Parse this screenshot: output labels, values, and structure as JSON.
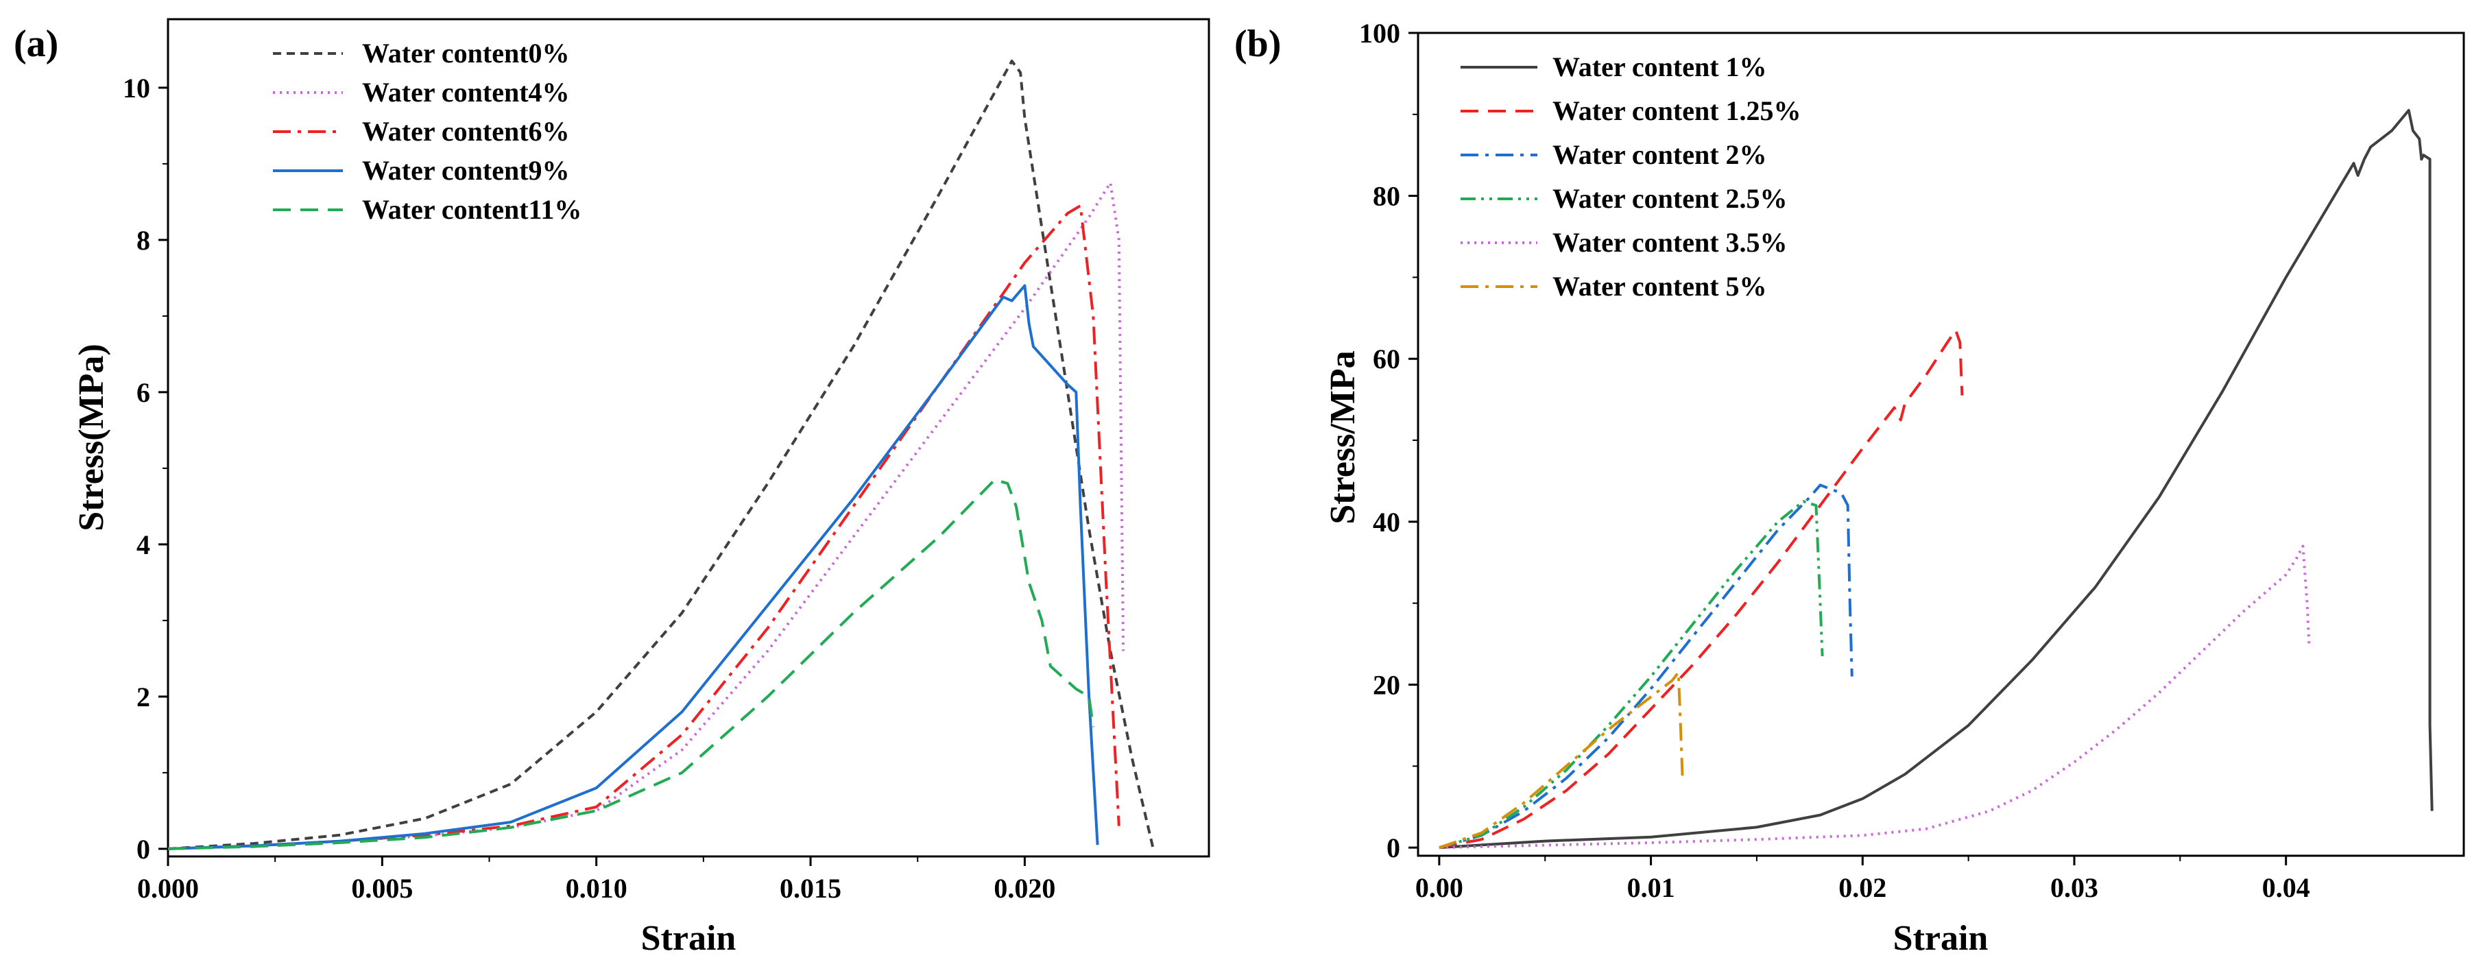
{
  "chart_data": [
    {
      "panel": "(a)",
      "type": "line",
      "xlabel": "Strain",
      "ylabel": "Stress(MPa)",
      "xlim": [
        0.0,
        0.0243
      ],
      "ylim": [
        -0.1,
        10.9
      ],
      "xticks": [
        "0.000",
        "0.005",
        "0.010",
        "0.015",
        "0.020"
      ],
      "xtick_values": [
        0.0,
        0.005,
        0.01,
        0.015,
        0.02
      ],
      "yticks": [
        "0",
        "2",
        "4",
        "6",
        "8",
        "10"
      ],
      "ytick_values": [
        0,
        2,
        4,
        6,
        8,
        10
      ],
      "legend_position": "top-left",
      "series": [
        {
          "name": "Water content0%",
          "color": "#404040",
          "dash": "dash-short",
          "x": [
            0,
            0.002,
            0.004,
            0.006,
            0.008,
            0.01,
            0.012,
            0.014,
            0.016,
            0.018,
            0.0197,
            0.0199,
            0.02,
            0.0205,
            0.021,
            0.0215,
            0.022,
            0.0225,
            0.023
          ],
          "y": [
            0,
            0.07,
            0.18,
            0.4,
            0.85,
            1.8,
            3.1,
            4.8,
            6.6,
            8.6,
            10.35,
            10.2,
            9.6,
            7.8,
            6.0,
            4.2,
            2.6,
            1.2,
            0
          ]
        },
        {
          "name": "Water content4%",
          "color": "#cc66dd",
          "dash": "dot",
          "x": [
            0,
            0.002,
            0.004,
            0.006,
            0.008,
            0.01,
            0.012,
            0.014,
            0.016,
            0.018,
            0.02,
            0.0215,
            0.022,
            0.0222,
            0.0223
          ],
          "y": [
            0,
            0.04,
            0.1,
            0.17,
            0.28,
            0.5,
            1.3,
            2.6,
            4.1,
            5.6,
            7.1,
            8.3,
            8.75,
            8.0,
            2.6
          ]
        },
        {
          "name": "Water content6%",
          "color": "#ee2222",
          "dash": "dashdot",
          "x": [
            0,
            0.002,
            0.004,
            0.006,
            0.008,
            0.01,
            0.012,
            0.014,
            0.016,
            0.018,
            0.02,
            0.021,
            0.0213,
            0.0216,
            0.0219,
            0.0222
          ],
          "y": [
            0,
            0.04,
            0.1,
            0.18,
            0.3,
            0.55,
            1.5,
            2.9,
            4.5,
            6.1,
            7.7,
            8.35,
            8.45,
            7.0,
            3.5,
            0.3
          ]
        },
        {
          "name": "Water content9%",
          "color": "#1f6fd0",
          "dash": "solid",
          "x": [
            0,
            0.002,
            0.004,
            0.006,
            0.008,
            0.01,
            0.012,
            0.014,
            0.016,
            0.018,
            0.0195,
            0.0197,
            0.02,
            0.0201,
            0.0202,
            0.021,
            0.0212,
            0.0213,
            0.0215,
            0.0217
          ],
          "y": [
            0,
            0.04,
            0.1,
            0.2,
            0.35,
            0.8,
            1.8,
            3.2,
            4.6,
            6.1,
            7.25,
            7.2,
            7.4,
            6.9,
            6.6,
            6.1,
            6.0,
            4.5,
            2.0,
            0.05
          ]
        },
        {
          "name": "Water content11%",
          "color": "#22aa55",
          "dash": "dash-long",
          "x": [
            0,
            0.002,
            0.004,
            0.006,
            0.008,
            0.01,
            0.012,
            0.014,
            0.016,
            0.018,
            0.0193,
            0.0196,
            0.0198,
            0.0201,
            0.0204,
            0.0206,
            0.021,
            0.0212,
            0.0215,
            0.0216
          ],
          "y": [
            0,
            0.03,
            0.08,
            0.15,
            0.28,
            0.5,
            1.0,
            2.0,
            3.1,
            4.1,
            4.85,
            4.8,
            4.5,
            3.5,
            3.0,
            2.4,
            2.2,
            2.1,
            2.0,
            1.6
          ]
        }
      ]
    },
    {
      "panel": "(b)",
      "type": "line",
      "xlabel": "Strain",
      "ylabel": "Stress/MPa",
      "xlim": [
        -0.001,
        0.0484
      ],
      "ylim": [
        -1,
        100
      ],
      "xticks": [
        "0.00",
        "0.01",
        "0.02",
        "0.03",
        "0.04"
      ],
      "xtick_values": [
        0.0,
        0.01,
        0.02,
        0.03,
        0.04
      ],
      "yticks": [
        "0",
        "20",
        "40",
        "60",
        "80",
        "100"
      ],
      "ytick_values": [
        0,
        20,
        40,
        60,
        80,
        100
      ],
      "legend_position": "top-left",
      "series": [
        {
          "name": "Water content 1%",
          "color": "#404040",
          "dash": "solid",
          "x": [
            0,
            0.005,
            0.01,
            0.015,
            0.018,
            0.02,
            0.022,
            0.025,
            0.028,
            0.031,
            0.034,
            0.037,
            0.04,
            0.0432,
            0.0434,
            0.0437,
            0.044,
            0.045,
            0.0458,
            0.046,
            0.0463,
            0.0464,
            0.0465,
            0.0468,
            0.0468,
            0.0469
          ],
          "y": [
            0,
            0.8,
            1.3,
            2.5,
            4.0,
            6.0,
            9.0,
            15.0,
            23.0,
            32.0,
            43.0,
            56.0,
            70.0,
            84.0,
            82.5,
            84.5,
            86.0,
            88.0,
            90.5,
            88.0,
            87.0,
            84.5,
            85.0,
            84.5,
            15.0,
            4.5
          ]
        },
        {
          "name": "Water content 1.25%",
          "color": "#ee2222",
          "dash": "dash-long",
          "x": [
            0,
            0.002,
            0.004,
            0.006,
            0.008,
            0.01,
            0.012,
            0.014,
            0.016,
            0.018,
            0.02,
            0.0215,
            0.0218,
            0.022,
            0.023,
            0.024,
            0.0244,
            0.0246,
            0.0247
          ],
          "y": [
            0,
            1.0,
            3.5,
            7.0,
            11.5,
            17.0,
            22.5,
            28.5,
            35.0,
            42.0,
            49.0,
            54.0,
            52.5,
            54.5,
            58.0,
            62.0,
            63.5,
            62.0,
            55.5
          ]
        },
        {
          "name": "Water content 2%",
          "color": "#1f6fd0",
          "dash": "dashdot",
          "x": [
            0,
            0.002,
            0.004,
            0.006,
            0.008,
            0.01,
            0.012,
            0.014,
            0.016,
            0.0175,
            0.018,
            0.0185,
            0.019,
            0.0193,
            0.0194,
            0.0195
          ],
          "y": [
            0,
            1.5,
            4.5,
            8.5,
            13.5,
            19.5,
            26.0,
            32.5,
            39.0,
            43.0,
            44.5,
            44.0,
            43.5,
            42.0,
            30.0,
            21.0
          ]
        },
        {
          "name": "Water content 2.5%",
          "color": "#22aa55",
          "dash": "dashdotdot",
          "x": [
            0,
            0.002,
            0.004,
            0.006,
            0.008,
            0.01,
            0.012,
            0.014,
            0.016,
            0.0172,
            0.0178,
            0.018,
            0.0181
          ],
          "y": [
            0,
            1.5,
            5.0,
            9.5,
            15.0,
            21.0,
            27.5,
            34.0,
            40.0,
            42.5,
            42.0,
            30.0,
            23.5
          ]
        },
        {
          "name": "Water content 3.5%",
          "color": "#cc66dd",
          "dash": "dot",
          "x": [
            0,
            0.005,
            0.01,
            0.015,
            0.018,
            0.02,
            0.023,
            0.026,
            0.028,
            0.03,
            0.032,
            0.034,
            0.036,
            0.038,
            0.04,
            0.0405,
            0.0408,
            0.041,
            0.0411
          ],
          "y": [
            0,
            0.3,
            0.6,
            1.0,
            1.3,
            1.5,
            2.3,
            4.5,
            7.0,
            10.5,
            14.5,
            19.0,
            24.0,
            29.0,
            33.5,
            35.5,
            37.0,
            30.0,
            24.5
          ]
        },
        {
          "name": "Water content 5%",
          "color": "#d4900a",
          "dash": "dashdot",
          "x": [
            0,
            0.002,
            0.004,
            0.006,
            0.008,
            0.01,
            0.011,
            0.0113,
            0.0114,
            0.0115
          ],
          "y": [
            0,
            1.8,
            5.5,
            10.0,
            14.5,
            18.5,
            20.5,
            21.5,
            15.0,
            8.0
          ]
        }
      ]
    }
  ]
}
